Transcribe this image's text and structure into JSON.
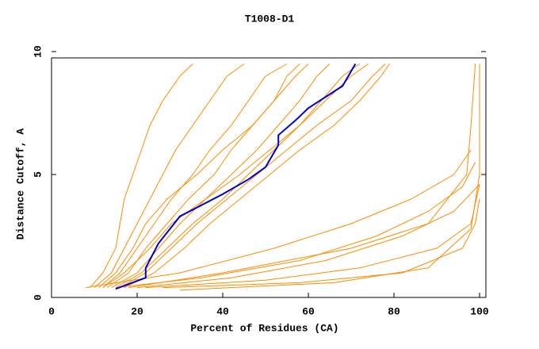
{
  "chart_data": {
    "type": "line",
    "title": "T1008-D1",
    "x_label": "Percent of Residues (CA)",
    "y_label": "Distance Cutoff, A",
    "xlim": [
      0,
      100
    ],
    "ylim": [
      0,
      10
    ],
    "xticks": [
      0,
      20,
      40,
      60,
      80,
      100
    ],
    "yticks": [
      0,
      5,
      10
    ],
    "series": [
      {
        "color": "#ff8c00",
        "x": [
          9,
          12,
          15,
          16,
          17,
          19,
          21,
          23,
          26,
          30,
          33
        ],
        "values": [
          0.4,
          1,
          2,
          3,
          4,
          5,
          6,
          7,
          8,
          9,
          9.5
        ]
      },
      {
        "color": "#ff8c00",
        "x": [
          10,
          14,
          17,
          20,
          23,
          26,
          29,
          33,
          37,
          41,
          45
        ],
        "values": [
          0.4,
          1,
          2,
          3,
          4,
          5,
          6,
          7,
          8,
          9,
          9.5
        ]
      },
      {
        "color": "#ff8c00",
        "x": [
          12,
          16,
          20,
          24,
          28,
          33,
          37,
          42,
          46,
          50,
          55
        ],
        "values": [
          0.4,
          1,
          2,
          3,
          4,
          5,
          6,
          7,
          8,
          9,
          9.5
        ]
      },
      {
        "color": "#ff8c00",
        "x": [
          13,
          18,
          22,
          27,
          32,
          38,
          42,
          47,
          52,
          57,
          60
        ],
        "values": [
          0.4,
          1,
          2,
          3,
          4,
          5,
          6,
          7,
          8,
          9,
          9.5
        ]
      },
      {
        "color": "#ff8c00",
        "x": [
          14,
          20,
          25,
          30,
          36,
          42,
          48,
          53,
          58,
          62,
          65
        ],
        "values": [
          0.4,
          1,
          2,
          3,
          4,
          5,
          6,
          7,
          8,
          9,
          9.5
        ]
      },
      {
        "color": "#ff8c00",
        "x": [
          15,
          21,
          27,
          33,
          40,
          46,
          52,
          58,
          63,
          68,
          72
        ],
        "values": [
          0.4,
          1,
          2,
          3,
          4,
          5,
          6,
          7,
          8,
          9,
          9.5
        ]
      },
      {
        "color": "#ff8c00",
        "x": [
          16,
          22,
          28,
          34,
          41,
          48,
          55,
          62,
          70,
          75,
          78
        ],
        "values": [
          0.4,
          1,
          2,
          3,
          4,
          5,
          6,
          7,
          8,
          9,
          9.5
        ]
      },
      {
        "color": "#ff8c00",
        "x": [
          12,
          17,
          23,
          28,
          36,
          44,
          51,
          58,
          64,
          70,
          74
        ],
        "values": [
          0.4,
          1,
          2,
          3,
          4,
          5,
          6,
          7,
          8,
          9,
          9.5
        ]
      },
      {
        "color": "#ff8c00",
        "x": [
          11,
          15,
          19,
          22,
          27,
          34,
          40,
          47,
          52,
          55,
          58
        ],
        "values": [
          0.4,
          1,
          2,
          3,
          4,
          5,
          6,
          7,
          8,
          9,
          9.5
        ]
      },
      {
        "color": "#ff8c00",
        "x": [
          17,
          24,
          31,
          37,
          44,
          51,
          58,
          66,
          72,
          77,
          79
        ],
        "values": [
          0.4,
          1,
          2,
          3,
          4,
          5,
          6,
          7,
          8,
          9,
          9.5
        ]
      },
      {
        "color": "#ff8c00",
        "x": [
          8,
          30,
          52,
          70,
          84,
          94,
          98
        ],
        "values": [
          0.4,
          1,
          2,
          3,
          4,
          5,
          6
        ]
      },
      {
        "color": "#ff8c00",
        "x": [
          15,
          35,
          58,
          76,
          88,
          96,
          99
        ],
        "values": [
          0.4,
          0.8,
          1.5,
          2.5,
          3.5,
          4.5,
          5.5
        ]
      },
      {
        "color": "#ff8c00",
        "x": [
          20,
          42,
          64,
          82,
          94,
          100
        ],
        "values": [
          0.4,
          0.8,
          1.5,
          2.5,
          3.5,
          4.6
        ]
      },
      {
        "color": "#ff8c00",
        "x": [
          22,
          50,
          72,
          90,
          98,
          100
        ],
        "values": [
          0.4,
          0.7,
          1.2,
          2,
          3,
          4.6
        ]
      },
      {
        "color": "#ff8c00",
        "x": [
          26,
          58,
          82,
          96,
          99,
          100
        ],
        "values": [
          0.4,
          0.6,
          1,
          2,
          3,
          4
        ]
      },
      {
        "color": "#ff8c00",
        "x": [
          30,
          66,
          88,
          98,
          100,
          100
        ],
        "values": [
          0.3,
          0.6,
          1.2,
          2.8,
          5,
          9.5
        ]
      },
      {
        "color": "#ff8c00",
        "x": [
          18,
          40,
          70,
          88,
          97,
          98,
          99
        ],
        "values": [
          0.4,
          1,
          2,
          3,
          5,
          7,
          9.5
        ]
      },
      {
        "color": "#0000cd",
        "x": [
          15,
          22,
          22,
          25,
          30,
          40,
          46,
          50,
          53,
          53,
          57,
          60,
          68,
          71
        ],
        "values": [
          0.35,
          0.8,
          1.2,
          2.2,
          3.3,
          4.2,
          4.8,
          5.3,
          6.2,
          6.6,
          7.2,
          7.7,
          8.6,
          9.5
        ]
      }
    ]
  }
}
